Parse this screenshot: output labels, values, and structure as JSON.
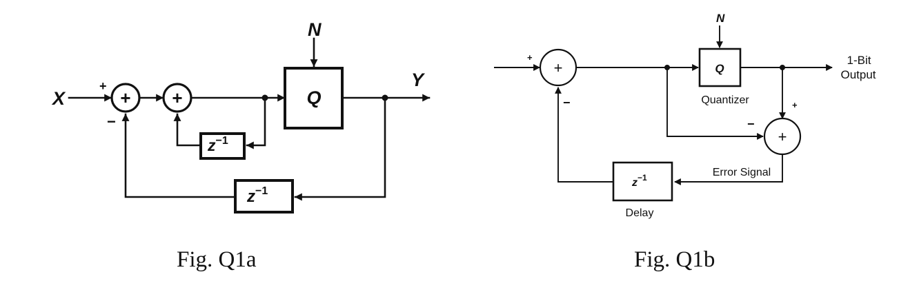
{
  "fig_a": {
    "caption": "Fig. Q1a",
    "input_label": "X",
    "output_label": "Y",
    "noise_label": "N",
    "quantizer_label": "Q",
    "delay_inner_label": "z",
    "delay_outer_label": "z",
    "exponent": "−1",
    "sum_symbol": "+",
    "sign_plus": "+",
    "sign_minus": "−"
  },
  "fig_b": {
    "caption": "Fig. Q1b",
    "noise_label": "N",
    "quantizer_label": "Q",
    "quantizer_caption": "Quantizer",
    "delay_label": "z",
    "exponent": "−1",
    "delay_caption": "Delay",
    "output_line1": "1-Bit",
    "output_line2": "Output",
    "error_label": "Error Signal",
    "sum_symbol": "+",
    "sign_plus": "+",
    "sign_minus": "−"
  }
}
